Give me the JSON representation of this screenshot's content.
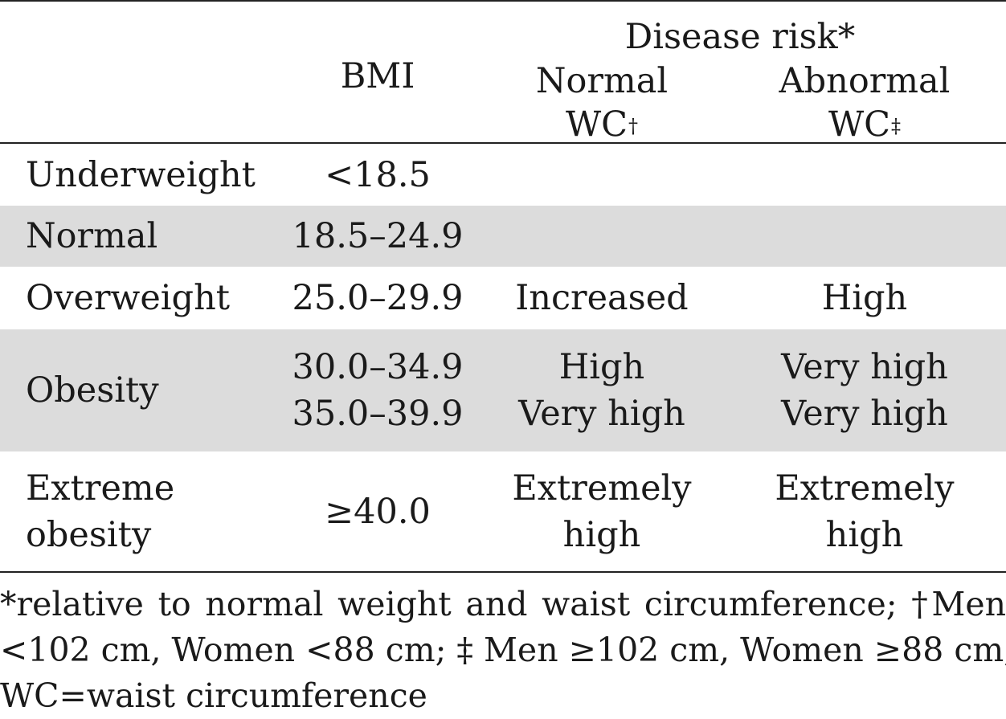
{
  "header": {
    "bmi": "BMI",
    "disease_risk": "Disease risk*",
    "normal_wc_line1": "Normal",
    "normal_wc_line2": "WC",
    "normal_wc_mark": "†",
    "abnormal_wc_line1": "Abnormal",
    "abnormal_wc_line2": "WC",
    "abnormal_wc_mark": "‡"
  },
  "rows": [
    {
      "category": [
        "Underweight"
      ],
      "bmi": [
        "<18.5"
      ],
      "normal_wc": [],
      "abnormal_wc": [],
      "shaded": false
    },
    {
      "category": [
        "Normal"
      ],
      "bmi": [
        "18.5–24.9"
      ],
      "normal_wc": [],
      "abnormal_wc": [],
      "shaded": true
    },
    {
      "category": [
        "Overweight"
      ],
      "bmi": [
        "25.0–29.9"
      ],
      "normal_wc": [
        "Increased"
      ],
      "abnormal_wc": [
        "High"
      ],
      "shaded": false
    },
    {
      "category": [
        "Obesity"
      ],
      "bmi": [
        "30.0–34.9",
        "35.0–39.9"
      ],
      "normal_wc": [
        "High",
        "Very high"
      ],
      "abnormal_wc": [
        "Very high",
        "Very high"
      ],
      "shaded": true
    },
    {
      "category": [
        "Extreme",
        "obesity"
      ],
      "bmi": [
        "≥40.0"
      ],
      "normal_wc": [
        "Extremely",
        "high"
      ],
      "abnormal_wc": [
        "Extremely",
        "high"
      ],
      "shaded": false
    }
  ],
  "footnote": {
    "line1": "*relative to normal weight and waist circumference; †Men",
    "line2": "<102 cm, Women <88 cm; ‡ Men ≥102 cm, Women ≥88 cm;",
    "line3": "WC=waist circumference"
  }
}
